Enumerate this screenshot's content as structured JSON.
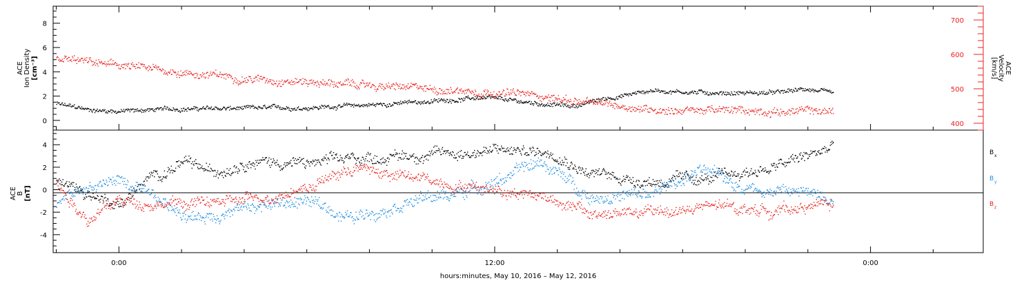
{
  "chart_data": [
    {
      "type": "scatter",
      "panel": "ion-density-velocity",
      "ylabel_lines": [
        "ACE",
        "Ion Density",
        "[cm⁻³]"
      ],
      "ylabel2_lines": [
        "ACE",
        "Velocity",
        "[km/s]"
      ],
      "ylim": [
        -0.8,
        9.4
      ],
      "y_ticks": [
        0,
        2,
        4,
        6,
        8
      ],
      "ylim2": [
        380,
        740
      ],
      "y2_ticks": [
        400,
        500,
        600,
        700
      ],
      "x_hours_lim": [
        -2.1,
        27.6
      ],
      "density_color": "#000000",
      "velocity_color": "#e8201c",
      "density_trend": [
        {
          "x": -2.0,
          "y": 1.4
        },
        {
          "x": -1.0,
          "y": 0.9
        },
        {
          "x": 0.0,
          "y": 0.8
        },
        {
          "x": 2.0,
          "y": 1.0
        },
        {
          "x": 4.0,
          "y": 1.0
        },
        {
          "x": 6.0,
          "y": 1.1
        },
        {
          "x": 8.0,
          "y": 1.3
        },
        {
          "x": 10.0,
          "y": 1.6
        },
        {
          "x": 11.5,
          "y": 1.9
        },
        {
          "x": 13.0,
          "y": 1.5
        },
        {
          "x": 14.5,
          "y": 1.2
        },
        {
          "x": 15.5,
          "y": 1.8
        },
        {
          "x": 17.0,
          "y": 2.5
        },
        {
          "x": 19.0,
          "y": 2.3
        },
        {
          "x": 21.0,
          "y": 2.3
        },
        {
          "x": 22.0,
          "y": 2.6
        },
        {
          "x": 22.8,
          "y": 2.2
        }
      ],
      "density_spread": 0.28,
      "velocity_trend": [
        {
          "x": -2.0,
          "y": 588
        },
        {
          "x": 0.0,
          "y": 568
        },
        {
          "x": 2.0,
          "y": 548
        },
        {
          "x": 4.0,
          "y": 532
        },
        {
          "x": 6.0,
          "y": 522
        },
        {
          "x": 8.0,
          "y": 510
        },
        {
          "x": 10.0,
          "y": 500
        },
        {
          "x": 12.0,
          "y": 493
        },
        {
          "x": 13.5,
          "y": 480
        },
        {
          "x": 15.0,
          "y": 460
        },
        {
          "x": 17.0,
          "y": 442
        },
        {
          "x": 19.0,
          "y": 438
        },
        {
          "x": 21.0,
          "y": 436
        },
        {
          "x": 22.8,
          "y": 436
        }
      ],
      "velocity_spread": 18
    },
    {
      "type": "scatter",
      "panel": "magnetic-field",
      "ylabel_lines": [
        "ACE",
        "B",
        "[nT]"
      ],
      "ylim": [
        -5.6,
        5.3
      ],
      "y_ticks": [
        -4,
        -2,
        0,
        2,
        4
      ],
      "x_hours_lim": [
        -2.1,
        27.6
      ],
      "x_ticks": [
        {
          "hours": 0,
          "label": "0:00"
        },
        {
          "hours": 12,
          "label": "12:00"
        },
        {
          "hours": 24,
          "label": "0:00"
        }
      ],
      "xlabel": "hours:minutes, May 10, 2016 – May 12, 2016",
      "series": [
        {
          "name": "B",
          "subscript": "x",
          "color": "#000000",
          "trend": [
            {
              "x": -2.0,
              "y": 0.8
            },
            {
              "x": -1.0,
              "y": -0.3
            },
            {
              "x": 0.0,
              "y": -1.2
            },
            {
              "x": 1.0,
              "y": 1.0
            },
            {
              "x": 2.0,
              "y": 2.4
            },
            {
              "x": 3.0,
              "y": 1.5
            },
            {
              "x": 4.0,
              "y": 2.7
            },
            {
              "x": 6.0,
              "y": 2.3
            },
            {
              "x": 8.0,
              "y": 2.9
            },
            {
              "x": 10.0,
              "y": 3.2
            },
            {
              "x": 12.0,
              "y": 3.5
            },
            {
              "x": 14.0,
              "y": 3.4
            },
            {
              "x": 15.0,
              "y": 1.5
            },
            {
              "x": 17.0,
              "y": 0.8
            },
            {
              "x": 19.0,
              "y": 1.0
            },
            {
              "x": 21.0,
              "y": 2.1
            },
            {
              "x": 22.8,
              "y": 3.8
            }
          ],
          "spread": 0.7
        },
        {
          "name": "B",
          "subscript": "y",
          "color": "#1c8ce0",
          "trend": [
            {
              "x": -2.0,
              "y": -1.2
            },
            {
              "x": -1.0,
              "y": 0.2
            },
            {
              "x": 0.0,
              "y": 1.0
            },
            {
              "x": 1.0,
              "y": -0.8
            },
            {
              "x": 2.5,
              "y": -2.5
            },
            {
              "x": 4.0,
              "y": -1.5
            },
            {
              "x": 6.0,
              "y": -1.0
            },
            {
              "x": 7.5,
              "y": -2.5
            },
            {
              "x": 9.0,
              "y": -1.0
            },
            {
              "x": 10.5,
              "y": -0.5
            },
            {
              "x": 12.0,
              "y": 0.8
            },
            {
              "x": 13.5,
              "y": 2.5
            },
            {
              "x": 15.0,
              "y": -0.5
            },
            {
              "x": 17.0,
              "y": -0.5
            },
            {
              "x": 18.5,
              "y": 1.8
            },
            {
              "x": 20.0,
              "y": 0.3
            },
            {
              "x": 22.8,
              "y": -0.5
            }
          ],
          "spread": 0.8
        },
        {
          "name": "B",
          "subscript": "z",
          "color": "#e8201c",
          "trend": [
            {
              "x": -2.0,
              "y": 0.5
            },
            {
              "x": -1.0,
              "y": -2.5
            },
            {
              "x": 0.0,
              "y": -1.0
            },
            {
              "x": 2.0,
              "y": -1.2
            },
            {
              "x": 4.0,
              "y": -1.0
            },
            {
              "x": 6.0,
              "y": 0.3
            },
            {
              "x": 7.5,
              "y": 2.0
            },
            {
              "x": 9.0,
              "y": 1.2
            },
            {
              "x": 11.0,
              "y": 0.5
            },
            {
              "x": 12.5,
              "y": 0.0
            },
            {
              "x": 14.0,
              "y": -0.8
            },
            {
              "x": 15.0,
              "y": -2.2
            },
            {
              "x": 17.0,
              "y": -2.0
            },
            {
              "x": 19.0,
              "y": -1.5
            },
            {
              "x": 21.0,
              "y": -1.8
            },
            {
              "x": 22.8,
              "y": -1.2
            }
          ],
          "spread": 0.7
        }
      ]
    }
  ]
}
